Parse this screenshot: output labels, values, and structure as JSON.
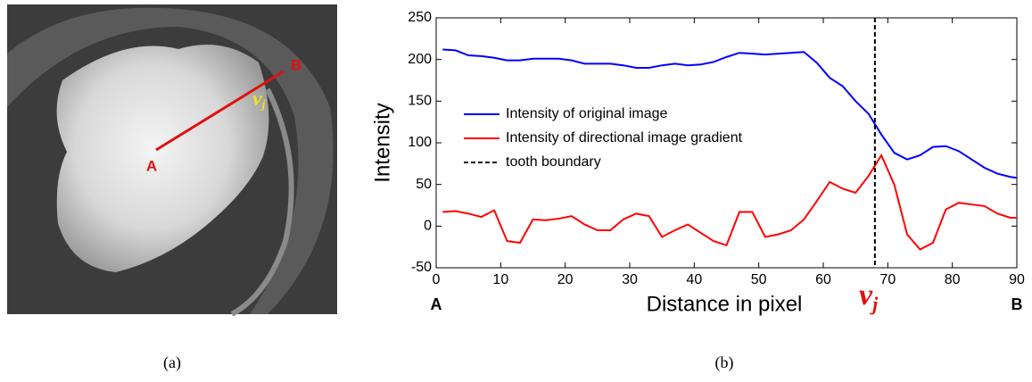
{
  "panel_a": {
    "label_a": "A",
    "label_b": "B",
    "point": "v",
    "point_sub": "j",
    "caption": "(a)"
  },
  "caption_b": "(b)",
  "chart_data": {
    "type": "line",
    "xlabel": "Distance in pixel",
    "ylabel": "Intensity",
    "x_start_label": "A",
    "x_end_label": "B",
    "annotation": "v",
    "annotation_sub": "j",
    "x": [
      1,
      3,
      5,
      7,
      9,
      11,
      13,
      15,
      17,
      19,
      21,
      23,
      25,
      27,
      29,
      31,
      33,
      35,
      37,
      39,
      41,
      43,
      45,
      47,
      49,
      51,
      53,
      55,
      57,
      59,
      61,
      63,
      65,
      67,
      69,
      71,
      73,
      75,
      77,
      79,
      81,
      83,
      85,
      87,
      89,
      90
    ],
    "series": [
      {
        "name": "Intensity of original image",
        "color": "#0000ff",
        "values": [
          212,
          211,
          205,
          204,
          202,
          199,
          199,
          201,
          201,
          201,
          199,
          195,
          195,
          195,
          193,
          190,
          190,
          193,
          195,
          193,
          194,
          197,
          203,
          208,
          207,
          206,
          207,
          208,
          209,
          196,
          178,
          168,
          150,
          135,
          110,
          88,
          80,
          85,
          95,
          96,
          90,
          80,
          70,
          63,
          59,
          58
        ]
      },
      {
        "name": "Intensity of directional image gradient",
        "color": "#ff0000",
        "values": [
          17,
          18,
          15,
          11,
          19,
          -18,
          -20,
          8,
          7,
          9,
          12,
          2,
          -5,
          -5,
          8,
          15,
          12,
          -13,
          -5,
          2,
          -8,
          -18,
          -23,
          17,
          17,
          -13,
          -10,
          -5,
          8,
          30,
          53,
          45,
          40,
          60,
          85,
          50,
          -10,
          -28,
          -20,
          20,
          28,
          26,
          24,
          15,
          10,
          10
        ]
      }
    ],
    "vline": {
      "x": 68,
      "name": "tooth boundary",
      "color": "#000000"
    },
    "xlim": [
      0,
      90
    ],
    "xticks": [
      0,
      10,
      20,
      30,
      40,
      50,
      60,
      70,
      80,
      90
    ],
    "ylim": [
      -50,
      250
    ],
    "yticks": [
      -50,
      0,
      50,
      100,
      150,
      200,
      250
    ]
  }
}
